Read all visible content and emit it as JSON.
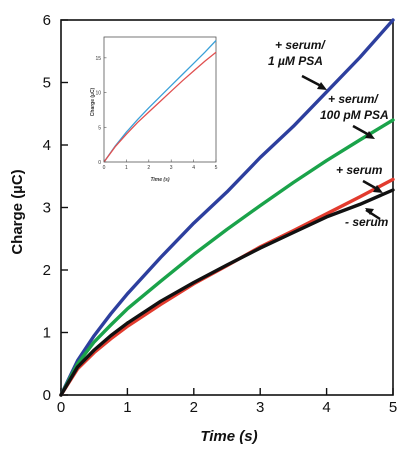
{
  "chart_data": [
    {
      "type": "line",
      "xlabel": "Time (s)",
      "ylabel": "Charge (µC)",
      "xlim": [
        0,
        5
      ],
      "ylim": [
        0,
        6
      ],
      "xticks": [
        "0",
        "1",
        "2",
        "3",
        "4",
        "5"
      ],
      "yticks": [
        "0",
        "1",
        "2",
        "3",
        "4",
        "5",
        "6"
      ],
      "grid": false,
      "series": [
        {
          "name": "+ serum/ 1 µM PSA",
          "color": "#2d3f9e",
          "x": [
            0,
            0.25,
            0.5,
            0.75,
            1,
            1.5,
            2,
            2.5,
            3,
            3.5,
            4,
            4.5,
            5
          ],
          "y": [
            0,
            0.55,
            0.95,
            1.3,
            1.62,
            2.2,
            2.75,
            3.25,
            3.8,
            4.3,
            4.85,
            5.4,
            6.0
          ]
        },
        {
          "name": "+ serum/ 100 pM PSA",
          "color": "#1aa34a",
          "x": [
            0,
            0.25,
            0.5,
            0.75,
            1,
            1.5,
            2,
            2.5,
            3,
            3.5,
            4,
            4.5,
            5
          ],
          "y": [
            0,
            0.5,
            0.85,
            1.12,
            1.38,
            1.82,
            2.25,
            2.65,
            3.03,
            3.4,
            3.75,
            4.08,
            4.4
          ]
        },
        {
          "name": "+ serum",
          "color": "#e23b2e",
          "x": [
            0,
            0.25,
            0.5,
            0.75,
            1,
            1.5,
            2,
            2.5,
            3,
            3.5,
            4,
            4.5,
            5
          ],
          "y": [
            0,
            0.42,
            0.68,
            0.9,
            1.1,
            1.45,
            1.78,
            2.07,
            2.37,
            2.63,
            2.9,
            3.17,
            3.45
          ]
        },
        {
          "name": "- serum",
          "color": "#111111",
          "x": [
            0,
            0.25,
            0.5,
            0.75,
            1,
            1.5,
            2,
            2.5,
            3,
            3.5,
            4,
            4.5,
            5
          ],
          "y": [
            0,
            0.45,
            0.72,
            0.95,
            1.15,
            1.5,
            1.8,
            2.08,
            2.35,
            2.6,
            2.85,
            3.05,
            3.28
          ]
        }
      ]
    },
    {
      "type": "line",
      "xlabel": "Time (s)",
      "ylabel": "Charge (µC)",
      "xlim": [
        0,
        5
      ],
      "ylim": [
        0,
        18
      ],
      "xticks": [
        "0",
        "1",
        "2",
        "3",
        "4",
        "5"
      ],
      "yticks": [
        "0",
        "5",
        "10",
        "15"
      ],
      "series": [
        {
          "color": "#3aa0d8",
          "x": [
            0,
            0.5,
            1,
            1.5,
            2,
            2.5,
            3,
            3.5,
            4,
            4.5,
            5
          ],
          "y": [
            0,
            2.3,
            4.3,
            6.1,
            7.8,
            9.4,
            11.0,
            12.6,
            14.2,
            15.8,
            17.5
          ]
        },
        {
          "color": "#e05050",
          "x": [
            0,
            0.5,
            1,
            1.5,
            2,
            2.5,
            3,
            3.5,
            4,
            4.5,
            5
          ],
          "y": [
            0,
            2.2,
            4.0,
            5.7,
            7.2,
            8.7,
            10.2,
            11.7,
            13.1,
            14.5,
            15.8
          ]
        }
      ]
    }
  ],
  "annotations": [
    "+ serum/",
    "1 µM PSA",
    "+ serum/",
    "100 pM PSA",
    "+ serum",
    "- serum"
  ]
}
